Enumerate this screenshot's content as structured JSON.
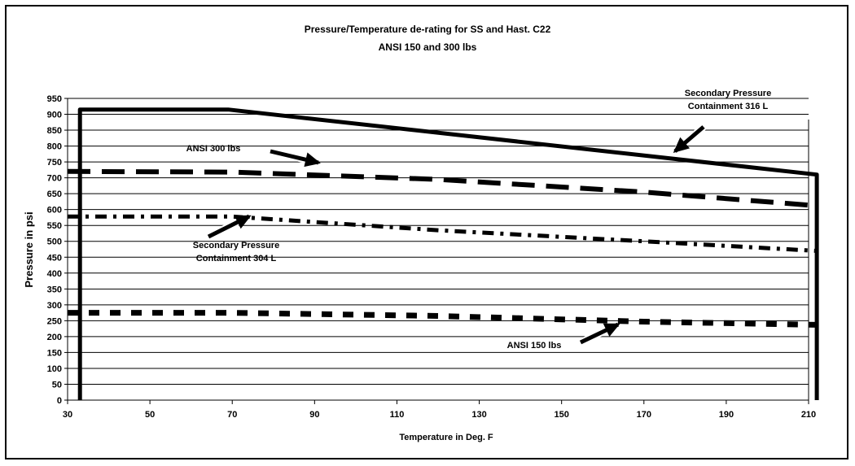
{
  "chart_data": {
    "type": "line",
    "title": "Pressure/Temperature de-rating for SS and Hast. C22",
    "subtitle": "ANSI 150 and 300 lbs",
    "xlabel": "Temperature in Deg. F",
    "ylabel": "Pressure in psi",
    "xlim": [
      30,
      210
    ],
    "ylim": [
      0,
      950
    ],
    "x_ticks": [
      30,
      50,
      70,
      90,
      110,
      130,
      150,
      170,
      190,
      210
    ],
    "y_ticks": [
      0,
      50,
      100,
      150,
      200,
      250,
      300,
      350,
      400,
      450,
      500,
      550,
      600,
      650,
      700,
      750,
      800,
      850,
      900,
      950
    ],
    "grid": "horizontal",
    "series": [
      {
        "name": "Secondary Pressure Containment 316 L",
        "style": "solid",
        "x": [
          33,
          33,
          69,
          212,
          212
        ],
        "y": [
          0,
          915,
          915,
          710,
          0
        ]
      },
      {
        "name": "ANSI 300 lbs",
        "style": "long-dash",
        "x": [
          30,
          70,
          120,
          170,
          212
        ],
        "y": [
          720,
          718,
          695,
          655,
          612
        ]
      },
      {
        "name": "Secondary Pressure Containment 304 L",
        "style": "dash-dot",
        "x": [
          30,
          70,
          120,
          170,
          212
        ],
        "y": [
          578,
          578,
          535,
          500,
          470
        ]
      },
      {
        "name": "ANSI 150 lbs",
        "style": "dash",
        "x": [
          30,
          70,
          120,
          170,
          212
        ],
        "y": [
          275,
          275,
          265,
          247,
          237
        ]
      }
    ],
    "annotations": [
      {
        "label_lines": [
          "Secondary Pressure",
          "Containment 316 L"
        ]
      },
      {
        "label_lines": [
          "ANSI 300 lbs"
        ]
      },
      {
        "label_lines": [
          "Secondary Pressure",
          "Containment 304 L"
        ]
      },
      {
        "label_lines": [
          "ANSI 150 lbs"
        ]
      }
    ]
  }
}
